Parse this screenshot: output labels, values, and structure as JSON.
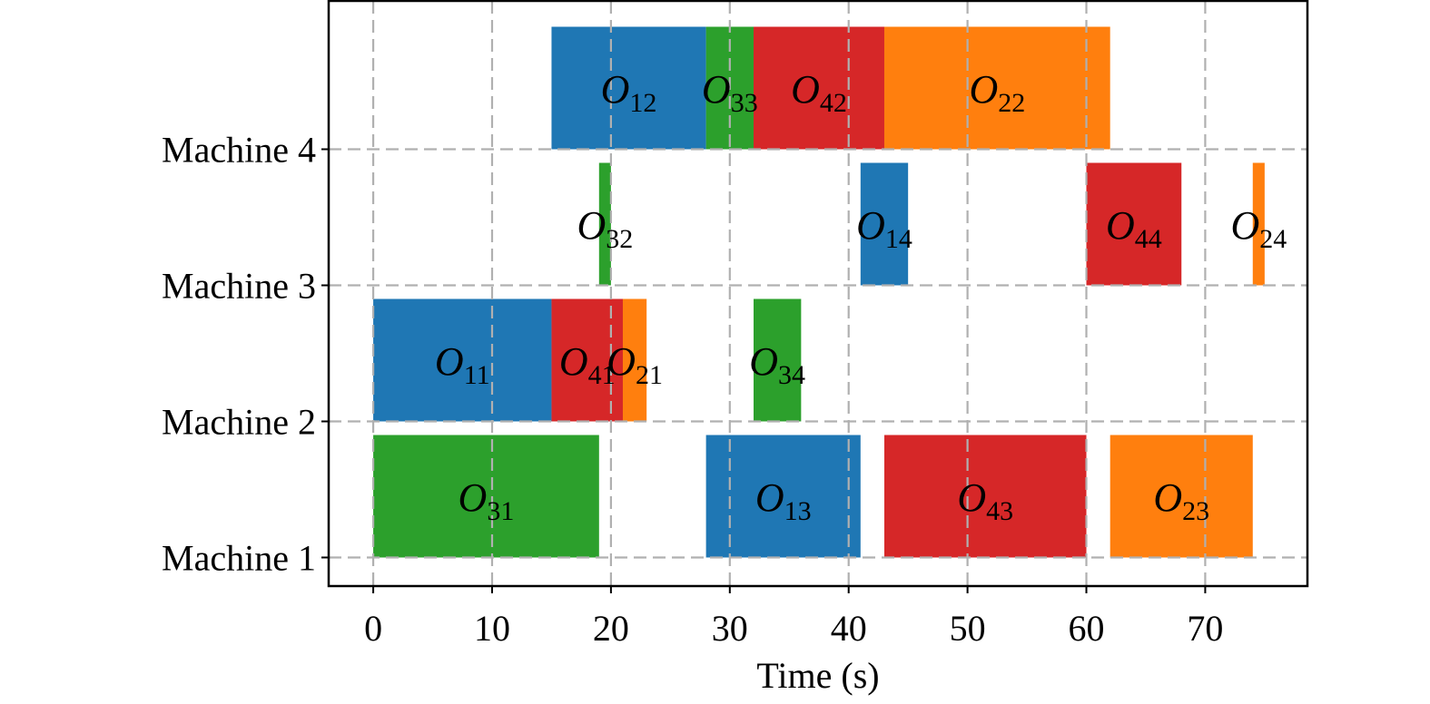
{
  "chart_data": {
    "type": "gantt",
    "title": "",
    "xlabel": "Time (s)",
    "ylabel": "",
    "xlim": [
      -3.75,
      78.6
    ],
    "ylim": [
      0.79,
      5.09
    ],
    "grid": true,
    "x_ticks": [
      0,
      10,
      20,
      30,
      40,
      50,
      60,
      70
    ],
    "y_ticks": [
      {
        "value": 1,
        "label": "Machine 1"
      },
      {
        "value": 2,
        "label": "Machine 2"
      },
      {
        "value": 3,
        "label": "Machine 3"
      },
      {
        "value": 4,
        "label": "Machine 4"
      }
    ],
    "bar_height": 0.9,
    "job_colors": {
      "1": "#1f77b4",
      "2": "#ff7f0e",
      "3": "#2ca02c",
      "4": "#d62728"
    },
    "tasks": [
      {
        "label": "O",
        "sub": "31",
        "job": 3,
        "machine": 1,
        "start": 0,
        "end": 19
      },
      {
        "label": "O",
        "sub": "13",
        "job": 1,
        "machine": 1,
        "start": 28,
        "end": 41
      },
      {
        "label": "O",
        "sub": "43",
        "job": 4,
        "machine": 1,
        "start": 43,
        "end": 60
      },
      {
        "label": "O",
        "sub": "23",
        "job": 2,
        "machine": 1,
        "start": 62,
        "end": 74
      },
      {
        "label": "O",
        "sub": "11",
        "job": 1,
        "machine": 2,
        "start": 0,
        "end": 15
      },
      {
        "label": "O",
        "sub": "41",
        "job": 4,
        "machine": 2,
        "start": 15,
        "end": 21
      },
      {
        "label": "O",
        "sub": "21",
        "job": 2,
        "machine": 2,
        "start": 21,
        "end": 23
      },
      {
        "label": "O",
        "sub": "34",
        "job": 3,
        "machine": 2,
        "start": 32,
        "end": 36
      },
      {
        "label": "O",
        "sub": "32",
        "job": 3,
        "machine": 3,
        "start": 19,
        "end": 20
      },
      {
        "label": "O",
        "sub": "14",
        "job": 1,
        "machine": 3,
        "start": 41,
        "end": 45
      },
      {
        "label": "O",
        "sub": "44",
        "job": 4,
        "machine": 3,
        "start": 60,
        "end": 68
      },
      {
        "label": "O",
        "sub": "24",
        "job": 2,
        "machine": 3,
        "start": 74,
        "end": 75
      },
      {
        "label": "O",
        "sub": "12",
        "job": 1,
        "machine": 4,
        "start": 15,
        "end": 28
      },
      {
        "label": "O",
        "sub": "33",
        "job": 3,
        "machine": 4,
        "start": 28,
        "end": 32
      },
      {
        "label": "O",
        "sub": "42",
        "job": 4,
        "machine": 4,
        "start": 32,
        "end": 43
      },
      {
        "label": "O",
        "sub": "22",
        "job": 2,
        "machine": 4,
        "start": 43,
        "end": 62
      }
    ]
  }
}
